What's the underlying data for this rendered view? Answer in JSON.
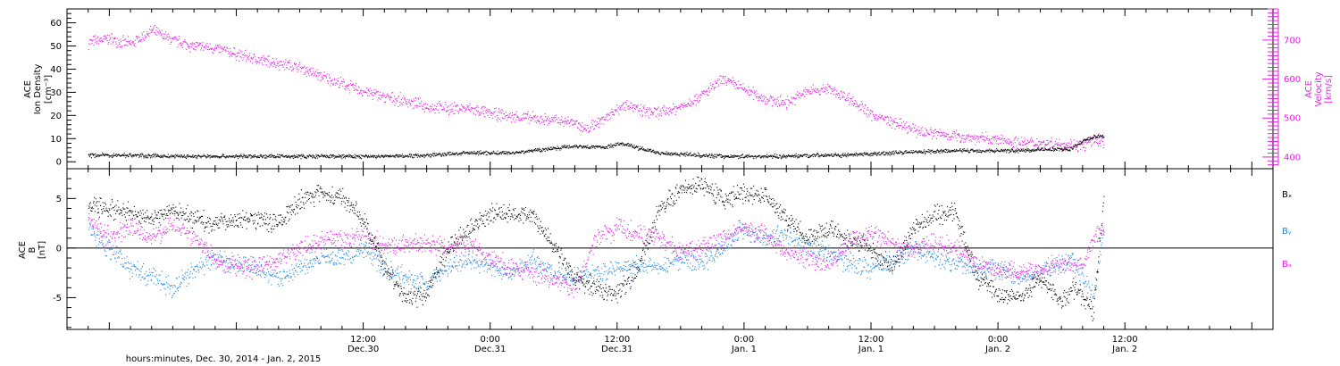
{
  "chart_data": [
    {
      "type": "scatter",
      "panel": "top",
      "ylabel_left": [
        "ACE",
        "Ion Density",
        "[cm⁻³]"
      ],
      "ylabel_right": [
        "ACE",
        "Velocity",
        "[km/s]"
      ],
      "yticks_left": [
        "0",
        "10",
        "20",
        "30",
        "40",
        "50",
        "60"
      ],
      "yticks_right": [
        "400",
        "500",
        "600",
        "700"
      ],
      "ylim_left": [
        -3,
        66
      ],
      "ylim_right": [
        370,
        780
      ],
      "series": [
        {
          "name": "",
          "axis": "left",
          "color": "#000000",
          "x": [
            -14,
            -10,
            -6,
            -2,
            2,
            6,
            10,
            14,
            18,
            20,
            22,
            24,
            26,
            28,
            30,
            32,
            34,
            35,
            36,
            37,
            38,
            39,
            40,
            42,
            44,
            46,
            48,
            50,
            52,
            54,
            56,
            58,
            60,
            62,
            64,
            66,
            68,
            70,
            72,
            74,
            76,
            78,
            79,
            80,
            81,
            82
          ],
          "y": [
            3,
            3,
            2.5,
            2.5,
            2.5,
            2.5,
            2.5,
            2.5,
            3,
            3.5,
            4,
            4,
            4,
            5,
            6,
            7,
            6.5,
            6.5,
            8,
            7.5,
            6,
            5,
            4,
            3.5,
            3,
            2.5,
            2.5,
            2.5,
            2.5,
            3,
            3,
            3,
            3.5,
            4,
            4.5,
            4.5,
            5,
            5,
            5,
            5,
            5.5,
            5.5,
            6,
            9,
            11,
            11
          ]
        },
        {
          "name": "",
          "axis": "right",
          "color": "#e81ee8",
          "x": [
            -14,
            -12,
            -10,
            -8,
            -6,
            -4,
            -2,
            0,
            2,
            4,
            6,
            8,
            10,
            12,
            14,
            16,
            18,
            20,
            22,
            24,
            26,
            28,
            30,
            32,
            33,
            34,
            35,
            36,
            37,
            38,
            40,
            42,
            44,
            46,
            48,
            50,
            52,
            54,
            56,
            58,
            60,
            62,
            64,
            66,
            68,
            70,
            72,
            74,
            76,
            78,
            80,
            81,
            82
          ],
          "y": [
            695,
            705,
            690,
            725,
            700,
            685,
            680,
            665,
            650,
            642,
            630,
            608,
            588,
            570,
            555,
            545,
            530,
            525,
            525,
            512,
            505,
            500,
            495,
            490,
            470,
            488,
            505,
            525,
            540,
            520,
            515,
            530,
            560,
            600,
            575,
            550,
            540,
            570,
            575,
            550,
            510,
            490,
            470,
            462,
            455,
            450,
            445,
            438,
            438,
            435,
            430,
            445,
            440
          ]
        }
      ]
    },
    {
      "type": "scatter",
      "panel": "bottom",
      "ylabel": [
        "ACE",
        "B",
        "[nT]"
      ],
      "yticks": [
        "-5",
        "0",
        "5"
      ],
      "ylim": [
        -8.2,
        8.0
      ],
      "legend": [
        "Bₓ",
        "Bᵧ",
        "Bₔ"
      ],
      "series": [
        {
          "name": "Bₓ",
          "color": "#000000",
          "x": [
            -14,
            -12,
            -10,
            -8,
            -6,
            -4,
            -2,
            0,
            2,
            4,
            6,
            8,
            10,
            12,
            14,
            16,
            18,
            20,
            22,
            24,
            26,
            28,
            30,
            32,
            34,
            36,
            38,
            40,
            42,
            44,
            46,
            48,
            50,
            52,
            54,
            56,
            58,
            60,
            62,
            64,
            66,
            68,
            70,
            72,
            74,
            76,
            78,
            79,
            80,
            81,
            82
          ],
          "y": [
            4.5,
            4,
            3.5,
            3,
            4,
            3,
            2.5,
            3,
            3,
            2.5,
            5,
            5.5,
            5,
            3,
            -2,
            -5,
            -4.5,
            0,
            2,
            3.5,
            3.5,
            3.5,
            0,
            -3,
            -4,
            -4.5,
            -2,
            4,
            6,
            6.5,
            5,
            5.5,
            5.5,
            3,
            1,
            2,
            1,
            0,
            -2,
            2,
            3.5,
            3.5,
            -3,
            -4.5,
            -5,
            -3,
            -5.5,
            -4,
            -5,
            -6.5,
            5.5
          ]
        },
        {
          "name": "Bᵧ",
          "color": "#1e88e5",
          "x": [
            -14,
            -12,
            -10,
            -8,
            -6,
            -4,
            -2,
            0,
            2,
            4,
            6,
            8,
            10,
            12,
            14,
            16,
            18,
            20,
            22,
            24,
            26,
            28,
            30,
            32,
            34,
            36,
            38,
            40,
            42,
            44,
            46,
            48,
            50,
            52,
            54,
            56,
            58,
            60,
            62,
            64,
            66,
            68,
            70,
            72,
            74,
            76,
            78,
            79,
            80,
            81,
            82
          ],
          "y": [
            2,
            0,
            -2,
            -3,
            -4,
            -2,
            -1,
            -1.5,
            -2,
            -3,
            -2,
            -1,
            -1,
            0,
            -2,
            -3,
            -3.5,
            -2,
            -1,
            -2,
            -2.5,
            -1,
            -2.5,
            -3,
            -2.5,
            -2,
            -1.5,
            -2,
            -1,
            -1.5,
            0,
            2,
            1,
            1.5,
            0,
            -0.5,
            -1.5,
            -2,
            -1.5,
            0,
            -1,
            -1.5,
            -2,
            -2,
            -3,
            -2.5,
            -1.5,
            -1,
            -3,
            -5,
            2
          ]
        },
        {
          "name": "Bₔ",
          "color": "#e81ee8",
          "x": [
            -14,
            -12,
            -10,
            -8,
            -6,
            -4,
            -2,
            0,
            2,
            4,
            6,
            8,
            10,
            12,
            14,
            16,
            18,
            20,
            22,
            24,
            26,
            28,
            30,
            32,
            34,
            36,
            38,
            40,
            42,
            44,
            46,
            48,
            50,
            52,
            54,
            56,
            58,
            60,
            62,
            64,
            66,
            68,
            70,
            72,
            74,
            76,
            78,
            79,
            80,
            81,
            82
          ],
          "y": [
            3,
            1,
            2,
            1,
            2.5,
            1,
            -1,
            -2,
            -2,
            -1,
            0,
            1,
            1,
            1.5,
            0,
            0.5,
            0.5,
            0,
            0.5,
            -1,
            -2,
            -2.5,
            -3,
            -4,
            1,
            2,
            1.5,
            1,
            -0.5,
            0,
            1,
            2,
            1.5,
            -0.5,
            -1,
            -1.5,
            0.5,
            1.5,
            0.5,
            0,
            0.5,
            0,
            -1.5,
            -2,
            -2.5,
            -2,
            -1.5,
            -2,
            -1.5,
            1,
            2
          ]
        }
      ]
    }
  ],
  "xaxis": {
    "range_hours": [
      -16,
      98
    ],
    "tick_hours": [
      12,
      24,
      36,
      48,
      60,
      72,
      84,
      96
    ],
    "labels": [
      {
        "hour": 12,
        "time": "12:00",
        "date": "Dec.30"
      },
      {
        "hour": 24,
        "time": "0:00",
        "date": "Dec.31"
      },
      {
        "hour": 36,
        "time": "12:00",
        "date": "Dec.31"
      },
      {
        "hour": 48,
        "time": "0:00",
        "date": "Jan. 1"
      },
      {
        "hour": 60,
        "time": "12:00",
        "date": "Jan. 1"
      },
      {
        "hour": 72,
        "time": "0:00",
        "date": "Jan. 2"
      },
      {
        "hour": 84,
        "time": "12:00",
        "date": "Jan. 2"
      }
    ],
    "xlabel": "hours:minutes, Dec. 30, 2014 - Jan.  2, 2015"
  }
}
